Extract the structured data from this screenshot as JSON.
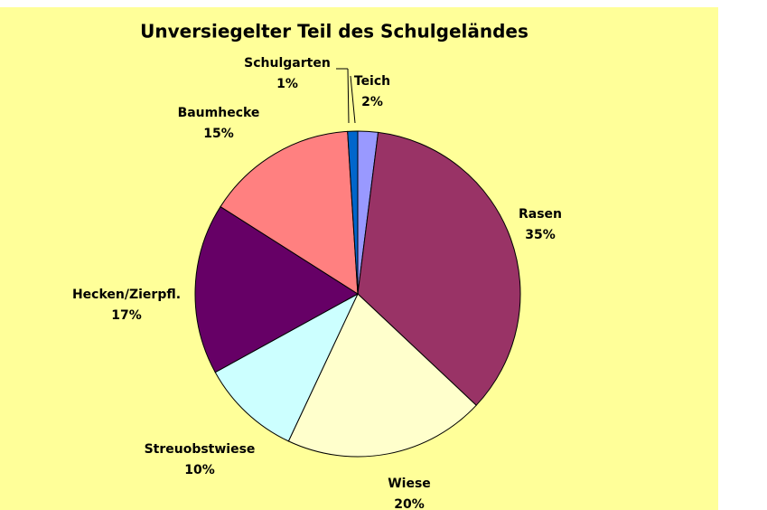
{
  "chart_data": {
    "type": "pie",
    "title": "Unversiegelter Teil des Schulgeländes",
    "categories": [
      "Teich",
      "Rasen",
      "Wiese",
      "Streuobstwiese",
      "Hecken/Zierpfl.",
      "Baumhecke",
      "Schulgarten"
    ],
    "values": [
      2,
      35,
      20,
      10,
      17,
      15,
      1
    ],
    "value_labels": [
      "2%",
      "35%",
      "20%",
      "10%",
      "17%",
      "15%",
      "1%"
    ],
    "colors": [
      "#9999ff",
      "#993366",
      "#ffffcc",
      "#ccffff",
      "#660066",
      "#ff8080",
      "#0066cc"
    ]
  }
}
